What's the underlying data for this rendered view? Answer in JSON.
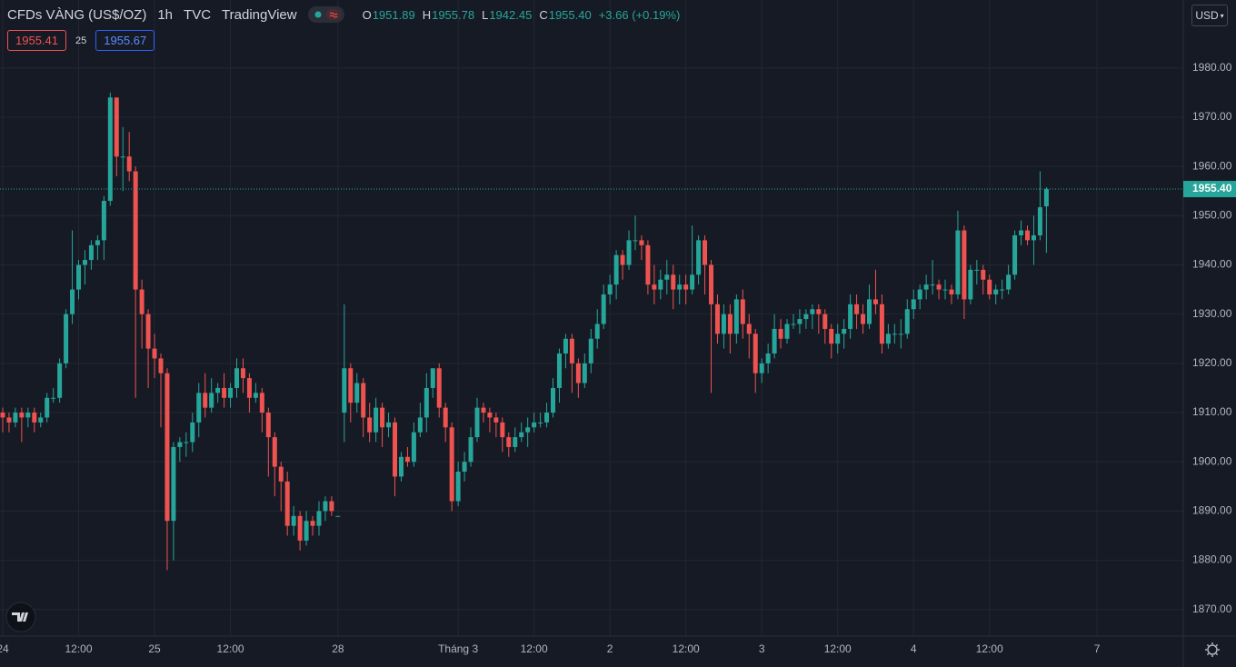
{
  "chart_data": {
    "type": "candlestick",
    "title": "CFDs VÀNG (US$/OZ)",
    "interval": "1h",
    "source": "TVC",
    "publisher": "TradingView",
    "ohlc_letters": [
      "O",
      "H",
      "L",
      "C"
    ],
    "last_ohlc_labels": [
      "1951.89",
      "1955.78",
      "1942.45",
      "1955.40"
    ],
    "change_label": "+3.66 (+0.19%)",
    "bid_label": "1955.41",
    "spread_label": "25",
    "ask_label": "1955.67",
    "currency": "USD",
    "up_color": "#26a69a",
    "down_color": "#ef5350",
    "ylim": [
      1864.6,
      1993.8
    ],
    "yticks": [
      {
        "value": 1870,
        "label": "1870.00"
      },
      {
        "value": 1880,
        "label": "1880.00"
      },
      {
        "value": 1890,
        "label": "1890.00"
      },
      {
        "value": 1900,
        "label": "1900.00"
      },
      {
        "value": 1910,
        "label": "1910.00"
      },
      {
        "value": 1920,
        "label": "1920.00"
      },
      {
        "value": 1930,
        "label": "1930.00"
      },
      {
        "value": 1940,
        "label": "1940.00"
      },
      {
        "value": 1950,
        "label": "1950.00"
      },
      {
        "value": 1960,
        "label": "1960.00"
      },
      {
        "value": 1970,
        "label": "1970.00"
      },
      {
        "value": 1980,
        "label": "1980.00"
      }
    ],
    "xlim": [
      -0.43,
      186.64
    ],
    "xticks": [
      {
        "value": 0,
        "label": "24"
      },
      {
        "value": 12,
        "label": "12:00"
      },
      {
        "value": 24,
        "label": "25"
      },
      {
        "value": 36,
        "label": "12:00"
      },
      {
        "value": 53,
        "label": "28"
      },
      {
        "value": 72,
        "label": "Tháng 3"
      },
      {
        "value": 84,
        "label": "12:00"
      },
      {
        "value": 96,
        "label": "2"
      },
      {
        "value": 108,
        "label": "12:00"
      },
      {
        "value": 120,
        "label": "3"
      },
      {
        "value": 132,
        "label": "12:00"
      },
      {
        "value": 144,
        "label": "4"
      },
      {
        "value": 156,
        "label": "12:00"
      },
      {
        "value": 173,
        "label": "7"
      }
    ],
    "grid": true,
    "ohlc": [
      [
        1910,
        1911,
        1906,
        1909
      ],
      [
        1909,
        1910,
        1906,
        1908
      ],
      [
        1908,
        1911,
        1907,
        1910
      ],
      [
        1910,
        1911,
        1904,
        1909
      ],
      [
        1909,
        1911,
        1907,
        1910
      ],
      [
        1910,
        1911,
        1906,
        1908
      ],
      [
        1908,
        1910,
        1907,
        1909
      ],
      [
        1909,
        1914,
        1908,
        1913
      ],
      [
        1913,
        1915,
        1912,
        1913
      ],
      [
        1913,
        1921,
        1912,
        1920
      ],
      [
        1920,
        1931,
        1919,
        1930
      ],
      [
        1930,
        1947,
        1928,
        1935
      ],
      [
        1935,
        1941,
        1933,
        1940
      ],
      [
        1940,
        1943,
        1936,
        1941
      ],
      [
        1941,
        1945,
        1939,
        1944
      ],
      [
        1944,
        1946,
        1941,
        1945
      ],
      [
        1945,
        1954,
        1941,
        1953
      ],
      [
        1953,
        1975,
        1952,
        1974
      ],
      [
        1974,
        1974,
        1958,
        1962
      ],
      [
        1962,
        1968,
        1955,
        1962
      ],
      [
        1962,
        1967,
        1957,
        1959
      ],
      [
        1959,
        1960,
        1913,
        1935
      ],
      [
        1935,
        1937,
        1923,
        1930
      ],
      [
        1930,
        1931,
        1915,
        1923
      ],
      [
        1923,
        1926,
        1917,
        1921
      ],
      [
        1921,
        1922,
        1907,
        1918
      ],
      [
        1918,
        1919,
        1878,
        1888
      ],
      [
        1888,
        1904,
        1880,
        1903
      ],
      [
        1903,
        1905,
        1900,
        1904
      ],
      [
        1904,
        1906,
        1901,
        1904
      ],
      [
        1904,
        1910,
        1902,
        1908
      ],
      [
        1908,
        1916,
        1905,
        1914
      ],
      [
        1914,
        1918,
        1909,
        1911
      ],
      [
        1911,
        1917,
        1910,
        1914
      ],
      [
        1914,
        1916,
        1912,
        1915
      ],
      [
        1915,
        1918,
        1911,
        1913
      ],
      [
        1913,
        1916,
        1911,
        1915
      ],
      [
        1915,
        1921,
        1913,
        1919
      ],
      [
        1919,
        1921,
        1914,
        1917
      ],
      [
        1917,
        1918,
        1910,
        1913
      ],
      [
        1913,
        1916,
        1912,
        1914
      ],
      [
        1914,
        1915,
        1906,
        1910
      ],
      [
        1910,
        1911,
        1897,
        1905
      ],
      [
        1905,
        1906,
        1893,
        1899
      ],
      [
        1899,
        1900,
        1890,
        1896
      ],
      [
        1896,
        1898,
        1885,
        1887
      ],
      [
        1887,
        1891,
        1885,
        1889
      ],
      [
        1889,
        1890,
        1882,
        1884
      ],
      [
        1884,
        1890,
        1883,
        1888
      ],
      [
        1888,
        1889,
        1885,
        1887
      ],
      [
        1887,
        1892,
        1885,
        1890
      ],
      [
        1890,
        1893,
        1888,
        1892
      ],
      [
        1892,
        1893,
        1889,
        1890
      ],
      [
        1889,
        1889,
        1889,
        1889
      ],
      [
        1910,
        1932,
        1904,
        1919
      ],
      [
        1919,
        1920,
        1908,
        1912
      ],
      [
        1912,
        1918,
        1910,
        1916
      ],
      [
        1916,
        1917,
        1905,
        1909
      ],
      [
        1909,
        1912,
        1904,
        1906
      ],
      [
        1906,
        1913,
        1904,
        1911
      ],
      [
        1911,
        1912,
        1903,
        1907
      ],
      [
        1907,
        1910,
        1905,
        1908
      ],
      [
        1908,
        1909,
        1893,
        1897
      ],
      [
        1897,
        1902,
        1896,
        1901
      ],
      [
        1901,
        1903,
        1899,
        1900
      ],
      [
        1900,
        1908,
        1899,
        1906
      ],
      [
        1906,
        1912,
        1905,
        1909
      ],
      [
        1909,
        1918,
        1906,
        1915
      ],
      [
        1915,
        1919,
        1913,
        1919
      ],
      [
        1919,
        1920,
        1909,
        1911
      ],
      [
        1911,
        1912,
        1904,
        1907
      ],
      [
        1907,
        1908,
        1890,
        1892
      ],
      [
        1892,
        1900,
        1891,
        1898
      ],
      [
        1898,
        1902,
        1896,
        1900
      ],
      [
        1900,
        1907,
        1899,
        1905
      ],
      [
        1905,
        1913,
        1904,
        1911
      ],
      [
        1911,
        1912,
        1908,
        1910
      ],
      [
        1910,
        1911,
        1906,
        1909
      ],
      [
        1909,
        1910,
        1905,
        1908
      ],
      [
        1908,
        1909,
        1902,
        1905
      ],
      [
        1905,
        1906,
        1901,
        1903
      ],
      [
        1903,
        1907,
        1902,
        1905
      ],
      [
        1905,
        1908,
        1904,
        1906
      ],
      [
        1906,
        1909,
        1903,
        1907
      ],
      [
        1907,
        1910,
        1906,
        1908
      ],
      [
        1908,
        1910,
        1907,
        1908
      ],
      [
        1908,
        1912,
        1907,
        1910
      ],
      [
        1910,
        1917,
        1909,
        1915
      ],
      [
        1915,
        1923,
        1912,
        1922
      ],
      [
        1922,
        1926,
        1919,
        1925
      ],
      [
        1925,
        1926,
        1914,
        1920
      ],
      [
        1920,
        1921,
        1913,
        1916
      ],
      [
        1916,
        1922,
        1915,
        1920
      ],
      [
        1920,
        1927,
        1918,
        1925
      ],
      [
        1925,
        1931,
        1923,
        1928
      ],
      [
        1928,
        1936,
        1927,
        1934
      ],
      [
        1934,
        1938,
        1932,
        1936
      ],
      [
        1936,
        1943,
        1933,
        1942
      ],
      [
        1942,
        1943,
        1937,
        1940
      ],
      [
        1940,
        1947,
        1939,
        1945
      ],
      [
        1945,
        1950,
        1943,
        1945
      ],
      [
        1945,
        1946,
        1941,
        1944
      ],
      [
        1944,
        1945,
        1934,
        1936
      ],
      [
        1936,
        1940,
        1932,
        1935
      ],
      [
        1935,
        1939,
        1933,
        1937
      ],
      [
        1937,
        1941,
        1934,
        1938
      ],
      [
        1938,
        1940,
        1931,
        1935
      ],
      [
        1935,
        1938,
        1932,
        1936
      ],
      [
        1936,
        1938,
        1932,
        1935
      ],
      [
        1935,
        1948,
        1934,
        1938
      ],
      [
        1938,
        1946,
        1936,
        1945
      ],
      [
        1945,
        1946,
        1934,
        1940
      ],
      [
        1940,
        1941,
        1914,
        1932
      ],
      [
        1932,
        1934,
        1924,
        1926
      ],
      [
        1926,
        1932,
        1923,
        1930
      ],
      [
        1930,
        1932,
        1922,
        1926
      ],
      [
        1926,
        1934,
        1924,
        1933
      ],
      [
        1933,
        1935,
        1925,
        1928
      ],
      [
        1928,
        1930,
        1921,
        1926
      ],
      [
        1926,
        1927,
        1914,
        1918
      ],
      [
        1918,
        1921,
        1916,
        1920
      ],
      [
        1920,
        1924,
        1918,
        1922
      ],
      [
        1922,
        1930,
        1921,
        1927
      ],
      [
        1927,
        1929,
        1923,
        1925
      ],
      [
        1925,
        1929,
        1924,
        1928
      ],
      [
        1928,
        1930,
        1927,
        1928
      ],
      [
        1928,
        1931,
        1926,
        1929
      ],
      [
        1929,
        1931,
        1927,
        1930
      ],
      [
        1930,
        1932,
        1927,
        1931
      ],
      [
        1931,
        1932,
        1926,
        1930
      ],
      [
        1930,
        1931,
        1924,
        1927
      ],
      [
        1927,
        1928,
        1921,
        1924
      ],
      [
        1924,
        1928,
        1922,
        1926
      ],
      [
        1926,
        1929,
        1923,
        1927
      ],
      [
        1927,
        1934,
        1925,
        1932
      ],
      [
        1932,
        1934,
        1927,
        1930
      ],
      [
        1930,
        1932,
        1926,
        1928
      ],
      [
        1928,
        1936,
        1927,
        1933
      ],
      [
        1933,
        1939,
        1930,
        1932
      ],
      [
        1932,
        1934,
        1922,
        1924
      ],
      [
        1924,
        1928,
        1923,
        1926
      ],
      [
        1926,
        1928,
        1924,
        1926
      ],
      [
        1926,
        1929,
        1923,
        1926
      ],
      [
        1926,
        1933,
        1925,
        1931
      ],
      [
        1931,
        1935,
        1929,
        1933
      ],
      [
        1933,
        1936,
        1931,
        1935
      ],
      [
        1935,
        1938,
        1933,
        1936
      ],
      [
        1936,
        1941,
        1934,
        1936
      ],
      [
        1936,
        1937,
        1933,
        1935
      ],
      [
        1935,
        1937,
        1933,
        1935
      ],
      [
        1935,
        1936,
        1932,
        1934
      ],
      [
        1934,
        1951,
        1933,
        1947
      ],
      [
        1947,
        1948,
        1929,
        1933
      ],
      [
        1933,
        1940,
        1932,
        1939
      ],
      [
        1939,
        1941,
        1936,
        1939
      ],
      [
        1939,
        1940,
        1934,
        1937
      ],
      [
        1937,
        1938,
        1933,
        1934
      ],
      [
        1934,
        1936,
        1932,
        1935
      ],
      [
        1935,
        1937,
        1933,
        1935
      ],
      [
        1935,
        1940,
        1934,
        1938
      ],
      [
        1938,
        1947,
        1937,
        1946
      ],
      [
        1946,
        1949,
        1944,
        1947
      ],
      [
        1947,
        1948,
        1944,
        1945
      ],
      [
        1945,
        1950,
        1940,
        1946
      ],
      [
        1946,
        1959,
        1945,
        1951.7
      ],
      [
        1951.89,
        1955.78,
        1942.45,
        1955.4
      ]
    ]
  }
}
